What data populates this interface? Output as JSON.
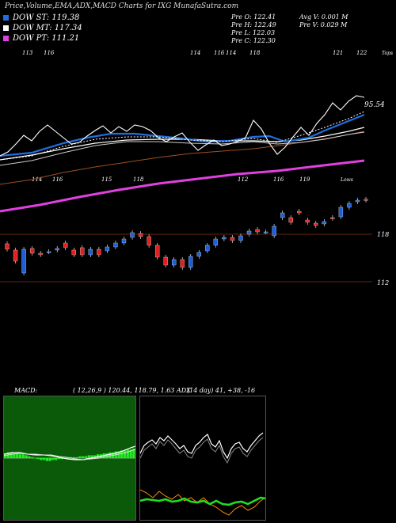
{
  "header": {
    "title": "Price,Volume,EMA,ADX,MACD Charts for IXG MunafaSutra.com"
  },
  "legend": [
    {
      "label": "DOW ST: 119.38",
      "color": "#1f6fe0"
    },
    {
      "label": "DOW MT: 117.34",
      "color": "#ffffff"
    },
    {
      "label": "DOW PT: 111.21",
      "color": "#e040e0"
    }
  ],
  "ohlc": {
    "o": "Pre O: 122.41",
    "h": "Pre H: 122.49",
    "l": "Pre L: 122.03",
    "c": "Pre C: 122.30",
    "avgv": "Avg V: 0.001 M",
    "prev": "Pre V: 0.029 M"
  },
  "indicators": {
    "macd_label": "MACD:",
    "macd_values": "( 12,26,9 ) 120.44, 118.79, 1.63 ADX",
    "adx_values": "(14 day) 41, +38, -16"
  },
  "chart_data": {
    "type": "candlestick",
    "upper_labels": {
      "top": [
        "113",
        "116",
        "114",
        "116",
        "114",
        "118",
        "121",
        "122",
        "Tops"
      ],
      "price_tag": "95.54",
      "bottom": [
        "114",
        "116",
        "115",
        "118",
        "112",
        "116",
        "119",
        "Lows"
      ]
    },
    "price_levels": [
      "118",
      "112"
    ],
    "colors": {
      "up": "#1e5fd8",
      "down": "#e02020",
      "ema_short": "#1f6fe0",
      "ema_mid": "#ffffff",
      "ema_long": "#e040e0",
      "ema_extra": "#a05020"
    },
    "candles": [
      {
        "o": 116.8,
        "c": 116.1
      },
      {
        "o": 116.0,
        "c": 114.6
      },
      {
        "o": 113.1,
        "c": 116.1
      },
      {
        "o": 116.2,
        "c": 115.6
      },
      {
        "o": 115.6,
        "c": 115.4
      },
      {
        "o": 115.8,
        "c": 115.8
      },
      {
        "o": 116.0,
        "c": 116.2
      },
      {
        "o": 116.9,
        "c": 116.3
      },
      {
        "o": 116.0,
        "c": 115.4
      },
      {
        "o": 116.3,
        "c": 115.4
      },
      {
        "o": 115.4,
        "c": 116.1
      },
      {
        "o": 116.1,
        "c": 115.4
      },
      {
        "o": 115.9,
        "c": 116.4
      },
      {
        "o": 116.4,
        "c": 116.9
      },
      {
        "o": 116.9,
        "c": 117.4
      },
      {
        "o": 117.6,
        "c": 118.2
      },
      {
        "o": 118.1,
        "c": 117.7
      },
      {
        "o": 117.7,
        "c": 116.6
      },
      {
        "o": 116.6,
        "c": 115.1
      },
      {
        "o": 115.1,
        "c": 114.1
      },
      {
        "o": 114.1,
        "c": 114.8
      },
      {
        "o": 114.8,
        "c": 113.8
      },
      {
        "o": 113.8,
        "c": 115.2
      },
      {
        "o": 115.2,
        "c": 115.7
      },
      {
        "o": 115.9,
        "c": 116.6
      },
      {
        "o": 116.6,
        "c": 117.4
      },
      {
        "o": 117.4,
        "c": 117.6
      },
      {
        "o": 117.6,
        "c": 117.2
      },
      {
        "o": 117.2,
        "c": 117.8
      },
      {
        "o": 118.0,
        "c": 118.4
      },
      {
        "o": 118.6,
        "c": 118.3
      },
      {
        "o": 118.3,
        "c": 118.3
      },
      {
        "o": 117.8,
        "c": 119.0
      },
      {
        "o": 120.1,
        "c": 120.7
      },
      {
        "o": 120.1,
        "c": 119.5
      },
      {
        "o": 120.9,
        "c": 120.7
      },
      {
        "o": 119.8,
        "c": 119.5
      },
      {
        "o": 119.4,
        "c": 119.1
      },
      {
        "o": 119.3,
        "c": 119.6
      },
      {
        "o": 120.1,
        "c": 120.0
      },
      {
        "o": 120.2,
        "c": 121.4
      },
      {
        "o": 121.4,
        "c": 121.9
      },
      {
        "o": 122.1,
        "c": 122.3
      },
      {
        "o": 122.41,
        "c": 122.3
      }
    ]
  }
}
